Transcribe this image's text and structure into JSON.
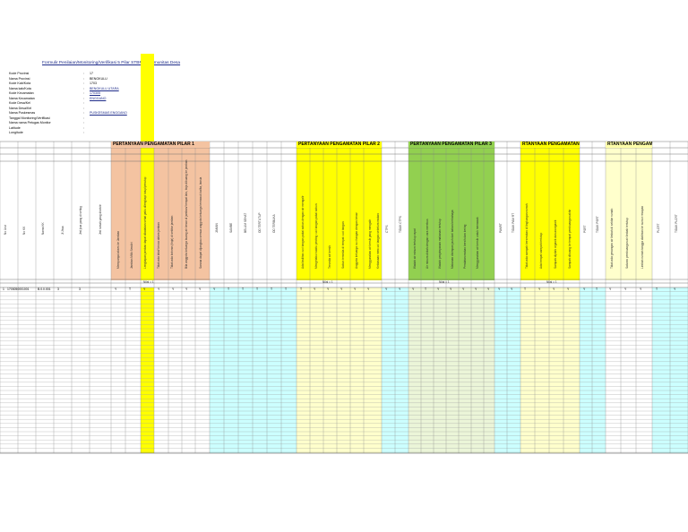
{
  "title": "Formulir Penilaian/Monitoring/Verifikasi 5 Pilar STBM di Komunitas Desa",
  "meta": [
    {
      "label": "Kode Provinsi",
      "value": "17",
      "link": false
    },
    {
      "label": "Nama Provinsi",
      "value": "BENGKULU",
      "link": false
    },
    {
      "label": "Kode Kab/Kota",
      "value": "1703",
      "link": false
    },
    {
      "label": "Nama kab/Kota",
      "value": "BENGKULU UTARA",
      "link": true
    },
    {
      "label": "Kode Kecamatan",
      "value": "170305",
      "link": true
    },
    {
      "label": "Nama Kecamatan",
      "value": "ENGGANO",
      "link": true
    },
    {
      "label": "Kode Desa/Kel",
      "value": "",
      "link": false
    },
    {
      "label": "Nama Desa/Kel",
      "value": "",
      "link": false
    },
    {
      "label": "Nama Puskesmas",
      "value": "PUSKESMAS ENGGANO",
      "link": true
    },
    {
      "label": "Tanggal Monitoring/Verifikasi",
      "value": "",
      "link": false
    },
    {
      "label": "Nama nama Petugas Monitor",
      "value": "",
      "link": false
    },
    {
      "label": "Latitude",
      "value": "",
      "link": false
    },
    {
      "label": "Longitude",
      "value": "",
      "link": false
    }
  ],
  "sections": [
    {
      "label": "PERTANYAAN PENGAMATAN PILAR 1",
      "color": "#f4c3a1"
    },
    {
      "label": "PERTANYAAN PENGAMATAN PILAR 2",
      "color": "#ffff00"
    },
    {
      "label": "PERTANYAAN PENGAMATAN PILAR 3",
      "color": "#92d050"
    },
    {
      "label": "RTANYAAN PENGAMATAN PI",
      "color": "#ffff00"
    },
    {
      "label": "RTANYAAN PENGAMATAN PI",
      "color": "#ffff99"
    }
  ],
  "left_columns": [
    "No Urut",
    "No KK",
    "Nama KK",
    "Jl Jiwa",
    "Jml jiwa yang di sehkg",
    "Jml rumah yang disekitr"
  ],
  "pilar1_questions": [
    "Mempunyai akses ke Jamban",
    "Jamban Milik Sendiri",
    "Lengkapan jamban dapat dikatakan sehat yaitu dilengkapi tutup/penutup",
    "Tidak ada lalat/ kecoa dalam jamban",
    "Tidak ada kotoran (tinja) di sekitar jamban",
    "Bila anggota keluarga buang air besar di jamban/ tempat lain, tinja dibuang ke jamban",
    "Sarana dapat dijangkau semua anggota keluarga termasuk balita, lansia"
  ],
  "status1": [
    "JAMAN",
    "SAMBE",
    "BELUM SEHAT",
    "OD TERTUTUP",
    "OD TERBUKA"
  ],
  "pilar2_questions": [
    "Ada fasilitas cuci tangan pakai sabun dengan air mengalir",
    "Mengetahui waktu penting cuci tangan pakai sabun",
    "Tersedia air bersih",
    "Sabun tersedia di tempat cuci tangan",
    "Anggota keluarga cuci tangan dengan benar",
    "Menggunakan air bersih yang mengalir",
    "Kebiasaan mencuci tangan sebelum makan"
  ],
  "status2": [
    "CTPS",
    "TIDAK CTPS"
  ],
  "pilar3_questions": [
    "Wadah air minum tertutup rapat",
    "Air minum diolah dengan cara merebus",
    "Wadah penyimpanan makanan tertutup",
    "Makanan disimpan jauh dari bahan berbahaya",
    "Peralatan makan bersih dan kering",
    "Menggunakan air bersih untuk memasak"
  ],
  "status3": [
    "PAMRT",
    "TIDAK PAM RT"
  ],
  "pilar4_questions": [
    "Tidak ada sampah berserakan di lingkungan rumah",
    "Ada tempat sampah tertutup",
    "Sampah dipilah organik dan anorganik",
    "Sampah dibuang ke tempat pembuangan akhir"
  ],
  "status4": [
    "PSRT",
    "TIDAK PSRT"
  ],
  "pilar5_questions": [
    "Tidak ada genangan air limbah di sekitar rumah",
    "Saluran pembuangan air limbah tertutup",
    "Limbah rumah tangga dialirkan ke sumur resapan"
  ],
  "status5": [
    "PLCRT",
    "TIDAK PLCRT"
  ],
  "first_row": {
    "no_urut": "1",
    "no_kk": "1703050001001",
    "nama_kk": "B.0.0.001",
    "jiwa": "3",
    "jiwa_sehat": "3"
  },
  "first_row_marks": [
    "Y",
    "T",
    "Y",
    "Y",
    "Y",
    "Y",
    "Y",
    "Y",
    "T",
    "T",
    "T",
    "T",
    "T",
    "T",
    "Y",
    "Y",
    "Y",
    "Y",
    "Y",
    "Y",
    "Y",
    "Y",
    "T",
    "Y",
    "Y",
    "Y",
    "Y",
    "Y",
    "Y",
    "Y",
    "T",
    "Y",
    "Y",
    "Y",
    "Y",
    "T",
    "Y",
    "Y",
    "Y",
    "T",
    "Y",
    "Y",
    "Y",
    "Y",
    "Y",
    "T",
    "Y",
    "Y",
    "Y",
    "T",
    "Y"
  ],
  "nilai_labels": [
    "Nilai = 1",
    "Nilai = 1",
    "Nilai = 1",
    "Nilai = 1"
  ]
}
